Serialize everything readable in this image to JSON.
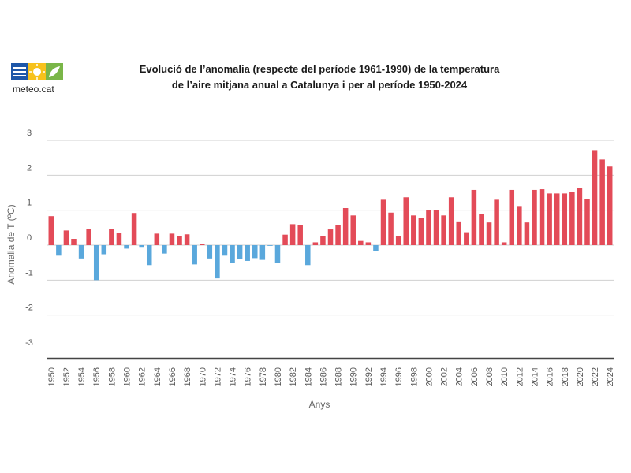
{
  "logo": {
    "text": "meteo.cat"
  },
  "title": {
    "line1": "Evolució de l’anomalia (respecte del període 1961-1990)  de la temperatura",
    "line2": "de l’aire mitjana anual a Catalunya i per al període 1950-2024"
  },
  "colors": {
    "positive": "#e34b58",
    "negative": "#5aa8dc",
    "grid": "#d0d0d0",
    "baseline": "#444444"
  },
  "chart_data": {
    "type": "bar",
    "title": "Evolució de l’anomalia (respecte del període 1961-1990)  de la temperatura de l’aire mitjana anual a Catalunya i per al període 1950-2024",
    "xlabel": "Anys",
    "ylabel": "Anomalia de T (ºC)",
    "ylim": [
      -3,
      3
    ],
    "yticks": [
      3,
      2,
      1,
      0,
      -1,
      -2,
      -3
    ],
    "grid": true,
    "x_tick_step": 2,
    "categories": [
      1950,
      1951,
      1952,
      1953,
      1954,
      1955,
      1956,
      1957,
      1958,
      1959,
      1960,
      1961,
      1962,
      1963,
      1964,
      1965,
      1966,
      1967,
      1968,
      1969,
      1970,
      1971,
      1972,
      1973,
      1974,
      1975,
      1976,
      1977,
      1978,
      1979,
      1980,
      1981,
      1982,
      1983,
      1984,
      1985,
      1986,
      1987,
      1988,
      1989,
      1990,
      1991,
      1992,
      1993,
      1994,
      1995,
      1996,
      1997,
      1998,
      1999,
      2000,
      2001,
      2002,
      2003,
      2004,
      2005,
      2006,
      2007,
      2008,
      2009,
      2010,
      2011,
      2012,
      2013,
      2014,
      2015,
      2016,
      2017,
      2018,
      2019,
      2020,
      2021,
      2022,
      2023,
      2024
    ],
    "values": [
      0.83,
      -0.3,
      0.42,
      0.18,
      -0.38,
      0.46,
      -1.0,
      -0.26,
      0.46,
      0.35,
      -0.1,
      0.92,
      -0.05,
      -0.57,
      0.33,
      -0.24,
      0.33,
      0.26,
      0.31,
      -0.55,
      0.04,
      -0.38,
      -0.95,
      -0.3,
      -0.5,
      -0.4,
      -0.45,
      -0.37,
      -0.42,
      -0.02,
      -0.5,
      0.3,
      0.6,
      0.57,
      -0.57,
      0.08,
      0.25,
      0.45,
      0.57,
      1.06,
      0.85,
      0.12,
      0.08,
      -0.18,
      1.3,
      0.93,
      0.25,
      1.37,
      0.85,
      0.78,
      1.0,
      1.0,
      0.85,
      1.37,
      0.68,
      0.37,
      1.58,
      0.88,
      0.65,
      1.3,
      0.08,
      1.58,
      1.12,
      0.65,
      1.58,
      1.6,
      1.48,
      1.48,
      1.48,
      1.52,
      1.63,
      1.33,
      2.72,
      2.45,
      2.25
    ]
  }
}
